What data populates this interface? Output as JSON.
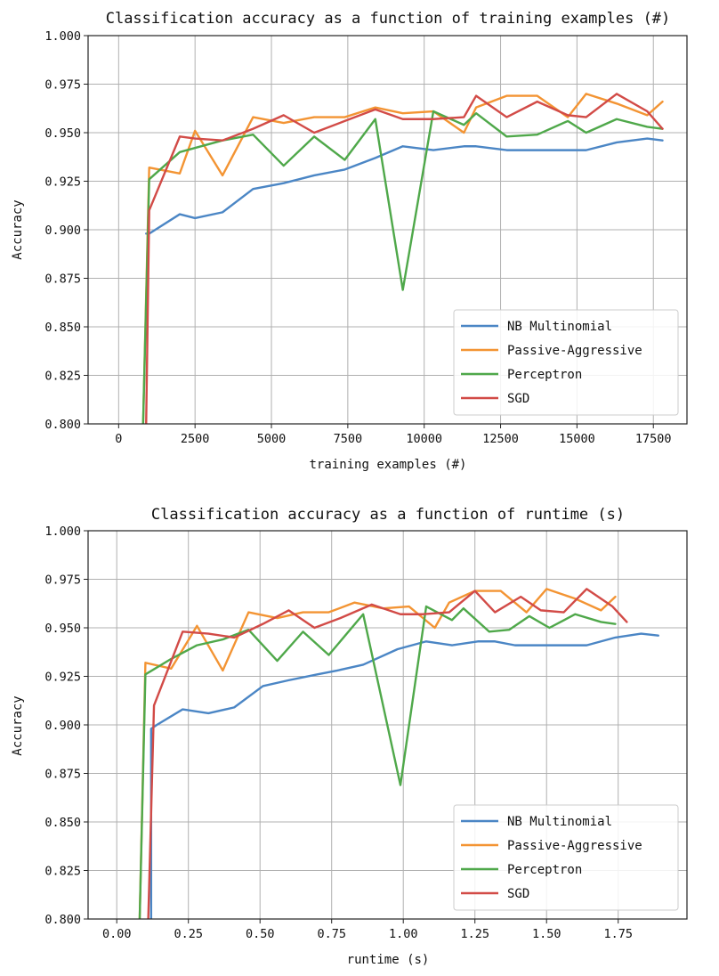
{
  "colors": {
    "nb": "#4b86c5",
    "pa": "#f39433",
    "perceptron": "#4fa84a",
    "sgd": "#d24b47",
    "grid": "#b0b0b0"
  },
  "chart_data": [
    {
      "type": "line",
      "title": "Classification accuracy as a function of training examples (#)",
      "xlabel": "training examples (#)",
      "ylabel": "Accuracy",
      "xlim": [
        -1000,
        18600
      ],
      "ylim": [
        0.8,
        1.0
      ],
      "grid": true,
      "legend_position": "lower-right",
      "x_ticks": [
        0,
        2500,
        5000,
        7500,
        10000,
        12500,
        15000,
        17500
      ],
      "x_tick_labels": [
        "0",
        "2500",
        "5000",
        "7500",
        "10000",
        "12500",
        "15000",
        "17500"
      ],
      "y_ticks": [
        0.8,
        0.825,
        0.85,
        0.875,
        0.9,
        0.925,
        0.95,
        0.975,
        1.0
      ],
      "y_tick_labels": [
        "0.800",
        "0.825",
        "0.850",
        "0.875",
        "0.900",
        "0.925",
        "0.950",
        "0.975",
        "1.000"
      ],
      "series": [
        {
          "name": "NB Multinomial",
          "color_key": "nb",
          "x": [
            900,
            1000,
            2000,
            2500,
            3400,
            4400,
            5400,
            6400,
            7400,
            8400,
            9300,
            10300,
            11300,
            11700,
            12700,
            13700,
            14700,
            15300,
            16300,
            17300,
            17800
          ],
          "y": [
            0.898,
            0.898,
            0.908,
            0.906,
            0.909,
            0.921,
            0.924,
            0.928,
            0.931,
            0.937,
            0.943,
            0.941,
            0.943,
            0.943,
            0.941,
            0.941,
            0.941,
            0.941,
            0.945,
            0.947,
            0.946
          ]
        },
        {
          "name": "Passive-Aggressive",
          "color_key": "pa",
          "x": [
            800,
            1000,
            2000,
            2500,
            3400,
            4400,
            5400,
            6400,
            7400,
            8400,
            9300,
            10300,
            11300,
            11700,
            12700,
            13700,
            14700,
            15300,
            16300,
            17300,
            17800
          ],
          "y": [
            0.8,
            0.932,
            0.929,
            0.951,
            0.928,
            0.958,
            0.955,
            0.958,
            0.958,
            0.963,
            0.96,
            0.961,
            0.95,
            0.963,
            0.969,
            0.969,
            0.958,
            0.97,
            0.965,
            0.959,
            0.966
          ]
        },
        {
          "name": "Perceptron",
          "color_key": "perceptron",
          "x": [
            800,
            1000,
            2000,
            3400,
            4400,
            5400,
            6400,
            7400,
            8400,
            9300,
            10300,
            11300,
            11700,
            12700,
            13700,
            14700,
            15300,
            16300,
            17300,
            17800
          ],
          "y": [
            0.8,
            0.926,
            0.94,
            0.946,
            0.949,
            0.933,
            0.948,
            0.936,
            0.957,
            0.869,
            0.961,
            0.954,
            0.96,
            0.948,
            0.949,
            0.956,
            0.95,
            0.957,
            0.953,
            0.952
          ]
        },
        {
          "name": "SGD",
          "color_key": "sgd",
          "x": [
            900,
            1000,
            2000,
            2500,
            3400,
            4400,
            5400,
            6400,
            7400,
            8400,
            9300,
            10300,
            11300,
            11700,
            12700,
            13700,
            14700,
            15300,
            16300,
            17300,
            17800
          ],
          "y": [
            0.8,
            0.91,
            0.948,
            0.947,
            0.946,
            0.952,
            0.959,
            0.95,
            0.956,
            0.962,
            0.957,
            0.957,
            0.958,
            0.969,
            0.958,
            0.966,
            0.959,
            0.958,
            0.97,
            0.961,
            0.952
          ]
        }
      ]
    },
    {
      "type": "line",
      "title": "Classification accuracy as a function of runtime (s)",
      "xlabel": "runtime (s)",
      "ylabel": "Accuracy",
      "xlim": [
        -0.1,
        1.99
      ],
      "ylim": [
        0.8,
        1.0
      ],
      "grid": true,
      "legend_position": "lower-right",
      "x_ticks": [
        0.0,
        0.25,
        0.5,
        0.75,
        1.0,
        1.25,
        1.5,
        1.75
      ],
      "x_tick_labels": [
        "0.00",
        "0.25",
        "0.50",
        "0.75",
        "1.00",
        "1.25",
        "1.50",
        "1.75"
      ],
      "y_ticks": [
        0.8,
        0.825,
        0.85,
        0.875,
        0.9,
        0.925,
        0.95,
        0.975,
        1.0
      ],
      "y_tick_labels": [
        "0.800",
        "0.825",
        "0.850",
        "0.875",
        "0.900",
        "0.925",
        "0.950",
        "0.975",
        "1.000"
      ],
      "series": [
        {
          "name": "NB Multinomial",
          "color_key": "nb",
          "x": [
            0.12,
            0.12,
            0.14,
            0.23,
            0.32,
            0.41,
            0.51,
            0.6,
            0.7,
            0.77,
            0.86,
            0.98,
            1.08,
            1.17,
            1.26,
            1.32,
            1.39,
            1.48,
            1.57,
            1.64,
            1.74,
            1.83,
            1.89
          ],
          "y": [
            0.8,
            0.898,
            0.9,
            0.908,
            0.906,
            0.909,
            0.92,
            0.923,
            0.926,
            0.928,
            0.931,
            0.939,
            0.943,
            0.941,
            0.943,
            0.943,
            0.941,
            0.941,
            0.941,
            0.941,
            0.945,
            0.947,
            0.946
          ]
        },
        {
          "name": "Passive-Aggressive",
          "color_key": "pa",
          "x": [
            0.08,
            0.1,
            0.19,
            0.28,
            0.37,
            0.46,
            0.56,
            0.65,
            0.74,
            0.83,
            0.93,
            1.02,
            1.11,
            1.16,
            1.25,
            1.34,
            1.43,
            1.5,
            1.6,
            1.69,
            1.74
          ],
          "y": [
            0.8,
            0.932,
            0.929,
            0.951,
            0.928,
            0.958,
            0.955,
            0.958,
            0.958,
            0.963,
            0.96,
            0.961,
            0.95,
            0.963,
            0.969,
            0.969,
            0.958,
            0.97,
            0.965,
            0.959,
            0.966
          ]
        },
        {
          "name": "Perceptron",
          "color_key": "perceptron",
          "x": [
            0.08,
            0.1,
            0.19,
            0.28,
            0.37,
            0.46,
            0.56,
            0.65,
            0.74,
            0.86,
            0.99,
            1.08,
            1.17,
            1.21,
            1.3,
            1.37,
            1.44,
            1.51,
            1.6,
            1.69,
            1.74
          ],
          "y": [
            0.8,
            0.926,
            0.934,
            0.941,
            0.944,
            0.949,
            0.933,
            0.948,
            0.936,
            0.957,
            0.869,
            0.961,
            0.954,
            0.96,
            0.948,
            0.949,
            0.956,
            0.95,
            0.957,
            0.953,
            0.952
          ]
        },
        {
          "name": "SGD",
          "color_key": "sgd",
          "x": [
            0.11,
            0.13,
            0.23,
            0.32,
            0.41,
            0.51,
            0.6,
            0.69,
            0.78,
            0.89,
            0.99,
            1.07,
            1.16,
            1.25,
            1.32,
            1.41,
            1.48,
            1.56,
            1.64,
            1.73,
            1.78
          ],
          "y": [
            0.8,
            0.91,
            0.948,
            0.947,
            0.945,
            0.952,
            0.959,
            0.95,
            0.955,
            0.962,
            0.957,
            0.957,
            0.958,
            0.969,
            0.958,
            0.966,
            0.959,
            0.958,
            0.97,
            0.961,
            0.953
          ]
        }
      ]
    }
  ]
}
